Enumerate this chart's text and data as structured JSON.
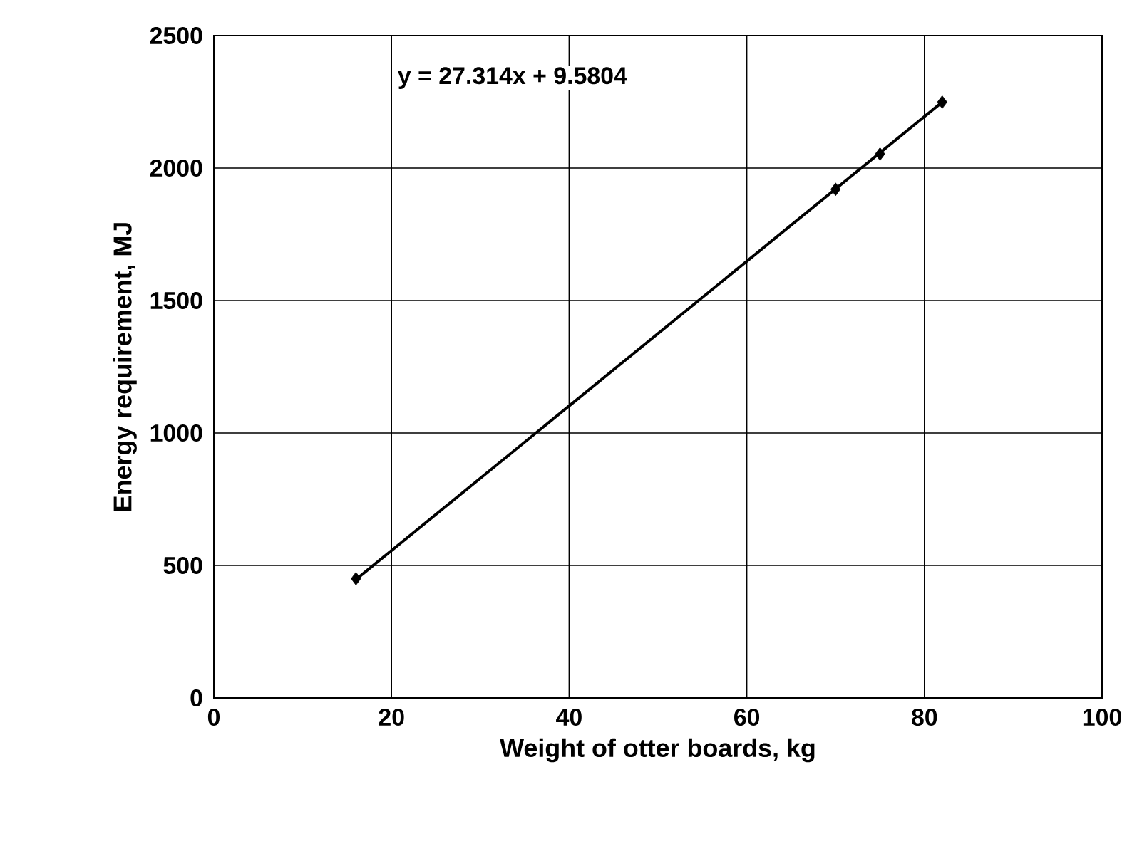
{
  "chart_data": {
    "type": "scatter",
    "xlabel": "Weight of otter boards, kg",
    "ylabel": "Energy requirement, MJ",
    "x": [
      16,
      70,
      75,
      82
    ],
    "series": [
      {
        "color": "#000000",
        "marker": "diamond",
        "values": [
          450,
          1920,
          2053,
          2249
        ]
      },
      {
        "type": "line",
        "color": "#000000",
        "line_style": "solid",
        "marker": "none",
        "x": [
          16,
          82
        ],
        "values": [
          447,
          2249
        ]
      }
    ],
    "annotations": [
      "y = 27.314x + 9.5804"
    ],
    "xlim": [
      0,
      100
    ],
    "ylim": [
      0,
      2500
    ],
    "xticks": [
      0,
      20,
      40,
      60,
      80,
      100
    ],
    "yticks": [
      0,
      500,
      1000,
      1500,
      2000,
      2500
    ],
    "grid": true
  }
}
